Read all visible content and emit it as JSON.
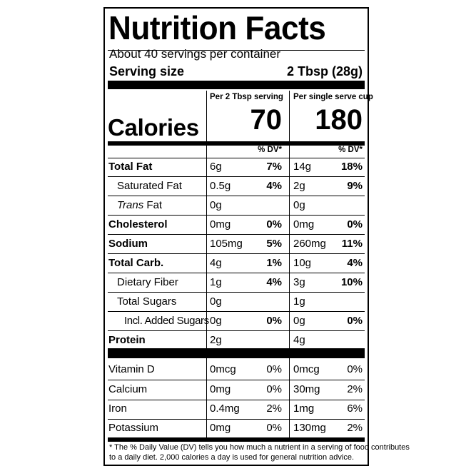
{
  "panel": {
    "title": "Nutrition Facts",
    "servings_per_container": "About 40 servings per container",
    "serving_size_label": "Serving size",
    "serving_size_value": "2 Tbsp (28g)"
  },
  "columns": {
    "col1_header": "Per 2 Tbsp serving",
    "col2_header": "Per single serve cup"
  },
  "calories": {
    "label": "Calories",
    "col1": "70",
    "col2": "180"
  },
  "dv_header": "% DV*",
  "nutrients": [
    {
      "name": "Total Fat",
      "amt1": "6g",
      "pct1": "7%",
      "amt2": "14g",
      "pct2": "18%"
    },
    {
      "name": "Saturated Fat",
      "amt1": "0.5g",
      "pct1": "4%",
      "amt2": "2g",
      "pct2": "9%"
    },
    {
      "name_italic": "Trans",
      "name_rest": " Fat",
      "amt1": "0g",
      "pct1": "",
      "amt2": "0g",
      "pct2": ""
    },
    {
      "name": "Cholesterol",
      "amt1": "0mg",
      "pct1": "0%",
      "amt2": "0mg",
      "pct2": "0%"
    },
    {
      "name": "Sodium",
      "amt1": "105mg",
      "pct1": "5%",
      "amt2": "260mg",
      "pct2": "11%"
    },
    {
      "name": "Total Carb.",
      "amt1": "4g",
      "pct1": "1%",
      "amt2": "10g",
      "pct2": "4%"
    },
    {
      "name": "Dietary Fiber",
      "amt1": "1g",
      "pct1": "4%",
      "amt2": "3g",
      "pct2": "10%"
    },
    {
      "name": "Total Sugars",
      "amt1": "0g",
      "pct1": "",
      "amt2": "1g",
      "pct2": ""
    },
    {
      "name": "Incl. Added Sugars",
      "amt1": "0g",
      "pct1": "0%",
      "amt2": "0g",
      "pct2": "0%"
    },
    {
      "name": "Protein",
      "amt1": "2g",
      "pct1": "",
      "amt2": "4g",
      "pct2": ""
    }
  ],
  "vitamins": [
    {
      "name": "Vitamin D",
      "amt1": "0mcg",
      "pct1": "0%",
      "amt2": "0mcg",
      "pct2": "0%"
    },
    {
      "name": "Calcium",
      "amt1": "0mg",
      "pct1": "0%",
      "amt2": "30mg",
      "pct2": "2%"
    },
    {
      "name": "Iron",
      "amt1": "0.4mg",
      "pct1": "2%",
      "amt2": "1mg",
      "pct2": "6%"
    },
    {
      "name": "Potassium",
      "amt1": "0mg",
      "pct1": "0%",
      "amt2": "130mg",
      "pct2": "2%"
    }
  ],
  "footnote": {
    "line1": "* The % Daily Value (DV) tells you how much a nutrient in a serving of food contributes",
    "line2": "to a daily diet. 2,000 calories a day is used for general nutrition advice."
  }
}
